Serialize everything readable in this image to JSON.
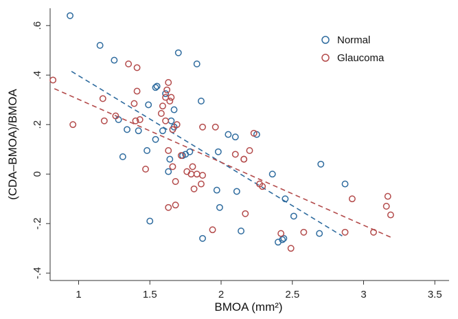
{
  "chart_data": {
    "type": "scatter",
    "xlabel": "BMOA (mm²)",
    "ylabel": "(CDA–BMOA)/BMOA",
    "xlim": [
      0.8,
      3.6
    ],
    "ylim": [
      -0.43,
      0.67
    ],
    "x_ticks": [
      1,
      1.5,
      2,
      2.5,
      3,
      3.5
    ],
    "x_tick_labels": [
      "1",
      "1.5",
      "2",
      "2.5",
      "3",
      "3.5"
    ],
    "y_ticks": [
      -0.4,
      -0.2,
      0,
      0.2,
      0.4,
      0.6
    ],
    "y_tick_labels": [
      "-.4",
      "-.2",
      "0",
      ".2",
      ".4",
      ".6"
    ],
    "grid": false,
    "legend_position": "top-right",
    "series": [
      {
        "name": "Normal",
        "color": "#2e6b9e",
        "marker": "hollow-circle",
        "points": [
          [
            0.94,
            0.64
          ],
          [
            1.15,
            0.52
          ],
          [
            1.25,
            0.46
          ],
          [
            1.28,
            0.22
          ],
          [
            1.31,
            0.07
          ],
          [
            1.34,
            0.18
          ],
          [
            1.42,
            0.175
          ],
          [
            1.48,
            0.095
          ],
          [
            1.49,
            0.28
          ],
          [
            1.5,
            -0.19
          ],
          [
            1.54,
            0.14
          ],
          [
            1.54,
            0.35
          ],
          [
            1.55,
            0.355
          ],
          [
            1.59,
            0.175
          ],
          [
            1.61,
            0.325
          ],
          [
            1.63,
            0.01
          ],
          [
            1.64,
            0.06
          ],
          [
            1.65,
            0.215
          ],
          [
            1.67,
            0.19
          ],
          [
            1.67,
            0.26
          ],
          [
            1.7,
            0.49
          ],
          [
            1.73,
            0.075
          ],
          [
            1.75,
            0.08
          ],
          [
            1.78,
            0.09
          ],
          [
            1.83,
            0.445
          ],
          [
            1.86,
            0.295
          ],
          [
            1.87,
            -0.26
          ],
          [
            1.97,
            -0.065
          ],
          [
            1.98,
            0.09
          ],
          [
            1.99,
            -0.135
          ],
          [
            2.05,
            0.16
          ],
          [
            2.1,
            0.15
          ],
          [
            2.11,
            -0.07
          ],
          [
            2.14,
            -0.23
          ],
          [
            2.25,
            0.16
          ],
          [
            2.36,
            0.0
          ],
          [
            2.4,
            -0.275
          ],
          [
            2.43,
            -0.265
          ],
          [
            2.44,
            -0.26
          ],
          [
            2.45,
            -0.1
          ],
          [
            2.51,
            -0.17
          ],
          [
            2.69,
            -0.24
          ],
          [
            2.7,
            0.04
          ],
          [
            2.87,
            -0.04
          ]
        ],
        "trend": [
          [
            0.95,
            0.415
          ],
          [
            2.85,
            -0.25
          ]
        ]
      },
      {
        "name": "Glaucoma",
        "color": "#b34a4a",
        "marker": "hollow-circle",
        "points": [
          [
            0.82,
            0.38
          ],
          [
            0.96,
            0.2
          ],
          [
            1.17,
            0.305
          ],
          [
            1.18,
            0.215
          ],
          [
            1.26,
            0.235
          ],
          [
            1.35,
            0.445
          ],
          [
            1.39,
            0.285
          ],
          [
            1.4,
            0.215
          ],
          [
            1.41,
            0.335
          ],
          [
            1.41,
            0.43
          ],
          [
            1.43,
            0.22
          ],
          [
            1.47,
            0.02
          ],
          [
            1.58,
            0.245
          ],
          [
            1.59,
            0.275
          ],
          [
            1.61,
            0.215
          ],
          [
            1.61,
            0.31
          ],
          [
            1.62,
            0.34
          ],
          [
            1.63,
            0.37
          ],
          [
            1.64,
            0.295
          ],
          [
            1.65,
            0.31
          ],
          [
            1.63,
            0.095
          ],
          [
            1.63,
            -0.135
          ],
          [
            1.66,
            0.18
          ],
          [
            1.66,
            0.03
          ],
          [
            1.68,
            -0.03
          ],
          [
            1.68,
            -0.125
          ],
          [
            1.69,
            0.2
          ],
          [
            1.72,
            0.075
          ],
          [
            1.76,
            0.01
          ],
          [
            1.79,
            0.0
          ],
          [
            1.8,
            0.03
          ],
          [
            1.81,
            -0.06
          ],
          [
            1.83,
            0.0
          ],
          [
            1.86,
            -0.04
          ],
          [
            1.87,
            0.19
          ],
          [
            1.87,
            -0.005
          ],
          [
            1.94,
            -0.225
          ],
          [
            1.96,
            0.19
          ],
          [
            2.1,
            0.08
          ],
          [
            2.16,
            0.06
          ],
          [
            2.16,
            0.06
          ],
          [
            2.17,
            -0.16
          ],
          [
            2.2,
            0.095
          ],
          [
            2.23,
            0.165
          ],
          [
            2.27,
            -0.04
          ],
          [
            2.29,
            -0.05
          ],
          [
            2.42,
            -0.24
          ],
          [
            2.49,
            -0.3
          ],
          [
            2.58,
            -0.235
          ],
          [
            2.87,
            -0.235
          ],
          [
            2.92,
            -0.1
          ],
          [
            3.07,
            -0.235
          ],
          [
            3.16,
            -0.13
          ],
          [
            3.17,
            -0.09
          ],
          [
            3.19,
            -0.165
          ]
        ],
        "trend": [
          [
            0.83,
            0.345
          ],
          [
            3.19,
            -0.255
          ]
        ]
      }
    ]
  }
}
